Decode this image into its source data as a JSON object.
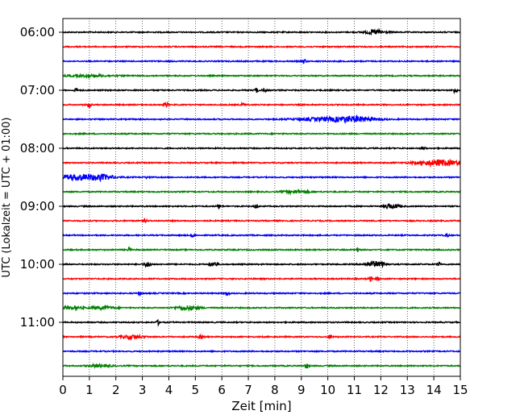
{
  "chart_data": {
    "type": "line",
    "title": "",
    "xlabel": "Zeit  [min]",
    "ylabel": "UTC (Lokalzeit = UTC + 01:00)",
    "xlim": [
      0,
      15
    ],
    "x_ticks": [
      "0",
      "1",
      "2",
      "3",
      "4",
      "5",
      "6",
      "7",
      "8",
      "9",
      "10",
      "11",
      "12",
      "13",
      "14",
      "15"
    ],
    "y_ticks": [
      "06:00",
      "07:00",
      "08:00",
      "09:00",
      "10:00",
      "11:00"
    ],
    "grid": "vertical dotted at each minute",
    "legend": "none",
    "row_interval_min": 15,
    "traces": [
      {
        "start": "06:00",
        "color": "#000000",
        "bursts": [
          [
            11.8,
            0.8,
            0.25
          ]
        ]
      },
      {
        "start": "06:15",
        "color": "#ff0000",
        "bursts": []
      },
      {
        "start": "06:30",
        "color": "#0000ff",
        "bursts": [
          [
            9.1,
            0.8,
            0.05
          ]
        ]
      },
      {
        "start": "06:45",
        "color": "#008000",
        "bursts": [
          [
            1.0,
            0.3,
            0.6
          ]
        ]
      },
      {
        "start": "07:00",
        "color": "#000000",
        "bursts": [
          [
            0.5,
            0.7,
            0.05
          ],
          [
            7.3,
            0.8,
            0.05
          ],
          [
            7.6,
            0.6,
            0.05
          ],
          [
            14.8,
            1.0,
            0.05
          ]
        ]
      },
      {
        "start": "07:15",
        "color": "#ff0000",
        "bursts": [
          [
            1.0,
            0.9,
            0.05
          ],
          [
            3.9,
            0.7,
            0.05
          ],
          [
            6.8,
            0.6,
            0.05
          ]
        ]
      },
      {
        "start": "07:30",
        "color": "#0000ff",
        "bursts": [
          [
            10.9,
            1.0,
            0.6
          ],
          [
            9.5,
            0.4,
            0.6
          ]
        ]
      },
      {
        "start": "07:45",
        "color": "#008000",
        "bursts": []
      },
      {
        "start": "08:00",
        "color": "#000000",
        "bursts": [
          [
            13.6,
            0.5,
            0.05
          ]
        ]
      },
      {
        "start": "08:15",
        "color": "#ff0000",
        "bursts": [
          [
            14.2,
            1.0,
            0.6
          ]
        ]
      },
      {
        "start": "08:30",
        "color": "#0000ff",
        "bursts": [
          [
            0.6,
            1.0,
            0.6
          ],
          [
            1.5,
            0.7,
            0.3
          ],
          [
            3.2,
            0.5,
            0.05
          ]
        ]
      },
      {
        "start": "08:45",
        "color": "#008000",
        "bursts": [
          [
            8.8,
            0.5,
            0.3
          ]
        ]
      },
      {
        "start": "09:00",
        "color": "#000000",
        "bursts": [
          [
            5.9,
            0.6,
            0.05
          ],
          [
            7.3,
            0.7,
            0.05
          ],
          [
            12.3,
            0.9,
            0.1
          ],
          [
            12.6,
            0.6,
            0.1
          ]
        ]
      },
      {
        "start": "09:15",
        "color": "#ff0000",
        "bursts": [
          [
            3.1,
            0.5,
            0.05
          ]
        ]
      },
      {
        "start": "09:30",
        "color": "#0000ff",
        "bursts": [
          [
            4.9,
            0.7,
            0.05
          ],
          [
            14.5,
            0.5,
            0.05
          ]
        ]
      },
      {
        "start": "09:45",
        "color": "#008000",
        "bursts": [
          [
            11.1,
            0.8,
            0.05
          ],
          [
            2.5,
            0.5,
            0.05
          ]
        ]
      },
      {
        "start": "10:00",
        "color": "#000000",
        "bursts": [
          [
            3.2,
            0.8,
            0.1
          ],
          [
            5.7,
            0.8,
            0.1
          ],
          [
            11.7,
            0.9,
            0.2
          ],
          [
            12.1,
            0.7,
            0.1
          ],
          [
            14.2,
            0.6,
            0.05
          ]
        ]
      },
      {
        "start": "10:15",
        "color": "#ff0000",
        "bursts": [
          [
            11.6,
            0.8,
            0.05
          ],
          [
            11.9,
            0.7,
            0.05
          ]
        ]
      },
      {
        "start": "10:30",
        "color": "#0000ff",
        "bursts": [
          [
            6.2,
            0.7,
            0.05
          ],
          [
            2.9,
            0.5,
            0.05
          ]
        ]
      },
      {
        "start": "10:45",
        "color": "#008000",
        "bursts": [
          [
            4.7,
            0.7,
            0.3
          ],
          [
            0.3,
            0.5,
            0.3
          ],
          [
            1.5,
            0.5,
            0.3
          ]
        ]
      },
      {
        "start": "11:00",
        "color": "#000000",
        "bursts": [
          [
            3.6,
            0.7,
            0.05
          ]
        ]
      },
      {
        "start": "11:15",
        "color": "#ff0000",
        "bursts": [
          [
            10.1,
            0.8,
            0.05
          ],
          [
            5.2,
            0.7,
            0.05
          ],
          [
            2.6,
            0.6,
            0.3
          ]
        ]
      },
      {
        "start": "11:30",
        "color": "#0000ff",
        "bursts": []
      },
      {
        "start": "11:45",
        "color": "#008000",
        "bursts": [
          [
            9.2,
            0.9,
            0.05
          ],
          [
            1.4,
            0.4,
            0.3
          ]
        ]
      }
    ]
  }
}
